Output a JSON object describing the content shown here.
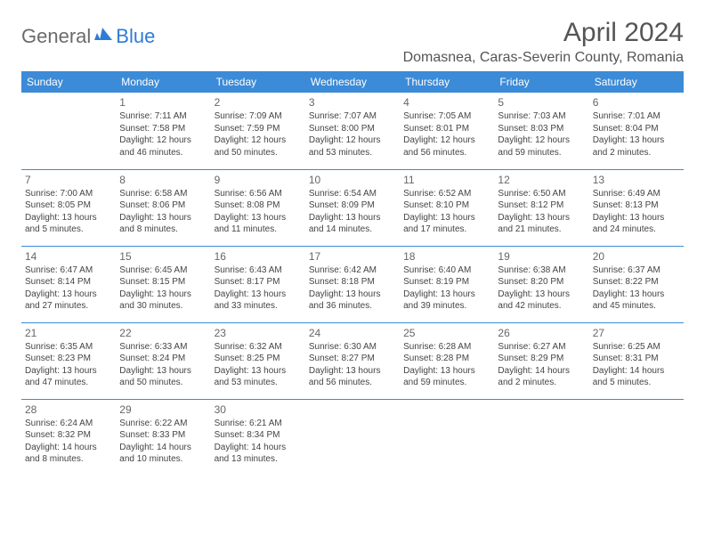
{
  "brand": {
    "part1": "General",
    "part2": "Blue"
  },
  "title": "April 2024",
  "location": "Domasnea, Caras-Severin County, Romania",
  "colors": {
    "header_bg": "#3b8bd8",
    "header_fg": "#ffffff",
    "rule": "#3b8bd8",
    "body_text": "#444444",
    "title_text": "#555555",
    "logo_gray": "#6b6b6b",
    "logo_blue": "#2e7cd6",
    "page_bg": "#ffffff"
  },
  "day_headers": [
    "Sunday",
    "Monday",
    "Tuesday",
    "Wednesday",
    "Thursday",
    "Friday",
    "Saturday"
  ],
  "start_weekday": 1,
  "days": [
    {
      "n": 1,
      "sunrise": "7:11 AM",
      "sunset": "7:58 PM",
      "daylight": "12 hours and 46 minutes."
    },
    {
      "n": 2,
      "sunrise": "7:09 AM",
      "sunset": "7:59 PM",
      "daylight": "12 hours and 50 minutes."
    },
    {
      "n": 3,
      "sunrise": "7:07 AM",
      "sunset": "8:00 PM",
      "daylight": "12 hours and 53 minutes."
    },
    {
      "n": 4,
      "sunrise": "7:05 AM",
      "sunset": "8:01 PM",
      "daylight": "12 hours and 56 minutes."
    },
    {
      "n": 5,
      "sunrise": "7:03 AM",
      "sunset": "8:03 PM",
      "daylight": "12 hours and 59 minutes."
    },
    {
      "n": 6,
      "sunrise": "7:01 AM",
      "sunset": "8:04 PM",
      "daylight": "13 hours and 2 minutes."
    },
    {
      "n": 7,
      "sunrise": "7:00 AM",
      "sunset": "8:05 PM",
      "daylight": "13 hours and 5 minutes."
    },
    {
      "n": 8,
      "sunrise": "6:58 AM",
      "sunset": "8:06 PM",
      "daylight": "13 hours and 8 minutes."
    },
    {
      "n": 9,
      "sunrise": "6:56 AM",
      "sunset": "8:08 PM",
      "daylight": "13 hours and 11 minutes."
    },
    {
      "n": 10,
      "sunrise": "6:54 AM",
      "sunset": "8:09 PM",
      "daylight": "13 hours and 14 minutes."
    },
    {
      "n": 11,
      "sunrise": "6:52 AM",
      "sunset": "8:10 PM",
      "daylight": "13 hours and 17 minutes."
    },
    {
      "n": 12,
      "sunrise": "6:50 AM",
      "sunset": "8:12 PM",
      "daylight": "13 hours and 21 minutes."
    },
    {
      "n": 13,
      "sunrise": "6:49 AM",
      "sunset": "8:13 PM",
      "daylight": "13 hours and 24 minutes."
    },
    {
      "n": 14,
      "sunrise": "6:47 AM",
      "sunset": "8:14 PM",
      "daylight": "13 hours and 27 minutes."
    },
    {
      "n": 15,
      "sunrise": "6:45 AM",
      "sunset": "8:15 PM",
      "daylight": "13 hours and 30 minutes."
    },
    {
      "n": 16,
      "sunrise": "6:43 AM",
      "sunset": "8:17 PM",
      "daylight": "13 hours and 33 minutes."
    },
    {
      "n": 17,
      "sunrise": "6:42 AM",
      "sunset": "8:18 PM",
      "daylight": "13 hours and 36 minutes."
    },
    {
      "n": 18,
      "sunrise": "6:40 AM",
      "sunset": "8:19 PM",
      "daylight": "13 hours and 39 minutes."
    },
    {
      "n": 19,
      "sunrise": "6:38 AM",
      "sunset": "8:20 PM",
      "daylight": "13 hours and 42 minutes."
    },
    {
      "n": 20,
      "sunrise": "6:37 AM",
      "sunset": "8:22 PM",
      "daylight": "13 hours and 45 minutes."
    },
    {
      "n": 21,
      "sunrise": "6:35 AM",
      "sunset": "8:23 PM",
      "daylight": "13 hours and 47 minutes."
    },
    {
      "n": 22,
      "sunrise": "6:33 AM",
      "sunset": "8:24 PM",
      "daylight": "13 hours and 50 minutes."
    },
    {
      "n": 23,
      "sunrise": "6:32 AM",
      "sunset": "8:25 PM",
      "daylight": "13 hours and 53 minutes."
    },
    {
      "n": 24,
      "sunrise": "6:30 AM",
      "sunset": "8:27 PM",
      "daylight": "13 hours and 56 minutes."
    },
    {
      "n": 25,
      "sunrise": "6:28 AM",
      "sunset": "8:28 PM",
      "daylight": "13 hours and 59 minutes."
    },
    {
      "n": 26,
      "sunrise": "6:27 AM",
      "sunset": "8:29 PM",
      "daylight": "14 hours and 2 minutes."
    },
    {
      "n": 27,
      "sunrise": "6:25 AM",
      "sunset": "8:31 PM",
      "daylight": "14 hours and 5 minutes."
    },
    {
      "n": 28,
      "sunrise": "6:24 AM",
      "sunset": "8:32 PM",
      "daylight": "14 hours and 8 minutes."
    },
    {
      "n": 29,
      "sunrise": "6:22 AM",
      "sunset": "8:33 PM",
      "daylight": "14 hours and 10 minutes."
    },
    {
      "n": 30,
      "sunrise": "6:21 AM",
      "sunset": "8:34 PM",
      "daylight": "14 hours and 13 minutes."
    }
  ]
}
